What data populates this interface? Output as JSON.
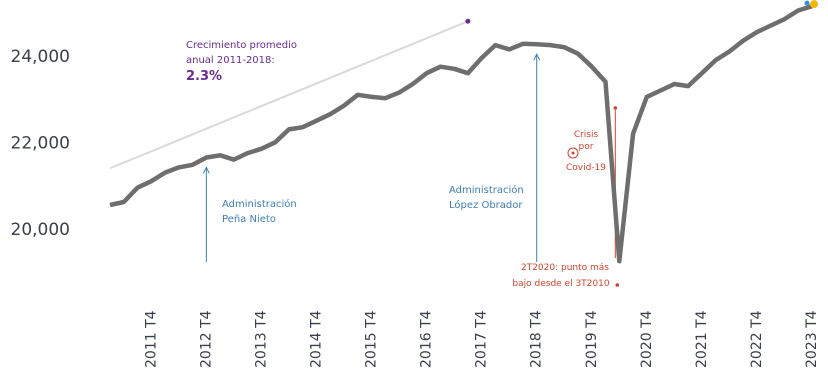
{
  "colors": {
    "series": "#6e6e6e",
    "trend": "#d9d9d9",
    "purple": "#6a2c91",
    "blue": "#3d7fb5",
    "red": "#d0432d",
    "end_dot": "#f2b705",
    "end_dot2": "#3a8fd9"
  },
  "chart_data": {
    "type": "line",
    "title": "",
    "xlabel": "",
    "ylabel": "",
    "ylim": [
      19000,
      25200
    ],
    "yticks": [
      {
        "value": 20000,
        "label": "20,000"
      },
      {
        "value": 22000,
        "label": "22,000"
      },
      {
        "value": 24000,
        "label": "24,000"
      }
    ],
    "x_tick_labels": [
      "2011 T4",
      "2012 T4",
      "2013 T4",
      "2014 T4",
      "2015 T4",
      "2016 T4",
      "2017 T4",
      "2018 T4",
      "2019 T4",
      "2020 T4",
      "2021 T4",
      "2022 T4",
      "2023 T4"
    ],
    "x_tick_index": [
      3,
      7,
      11,
      15,
      19,
      23,
      27,
      31,
      35,
      39,
      43,
      47,
      51
    ],
    "x_categories": [
      "2011 T1",
      "2011 T2",
      "2011 T3",
      "2011 T4",
      "2012 T1",
      "2012 T2",
      "2012 T3",
      "2012 T4",
      "2013 T1",
      "2013 T2",
      "2013 T3",
      "2013 T4",
      "2014 T1",
      "2014 T2",
      "2014 T3",
      "2014 T4",
      "2015 T1",
      "2015 T2",
      "2015 T3",
      "2015 T4",
      "2016 T1",
      "2016 T2",
      "2016 T3",
      "2016 T4",
      "2017 T1",
      "2017 T2",
      "2017 T3",
      "2017 T4",
      "2018 T1",
      "2018 T2",
      "2018 T3",
      "2018 T4",
      "2019 T1",
      "2019 T2",
      "2019 T3",
      "2019 T4",
      "2020 T1",
      "2020 T2",
      "2020 T3",
      "2020 T4",
      "2021 T1",
      "2021 T2",
      "2021 T3",
      "2021 T4",
      "2022 T1",
      "2022 T2",
      "2022 T3",
      "2022 T4",
      "2023 T1",
      "2023 T2",
      "2023 T3",
      "2023 T4"
    ],
    "series": [
      {
        "values": [
          20550,
          20620,
          20950,
          21100,
          21300,
          21420,
          21480,
          21650,
          21700,
          21600,
          21750,
          21850,
          22000,
          22300,
          22350,
          22500,
          22650,
          22850,
          23100,
          23050,
          23020,
          23150,
          23350,
          23600,
          23750,
          23700,
          23600,
          23950,
          24250,
          24150,
          24280,
          24270,
          24250,
          24200,
          24050,
          23750,
          23400,
          19250,
          22200,
          23050,
          23200,
          23350,
          23300,
          23600,
          23900,
          24100,
          24350,
          24550,
          24700,
          24850,
          25050,
          25150
        ]
      }
    ],
    "trend_line": {
      "from_index": 0,
      "from_value": 21400,
      "to_index": 26,
      "to_value": 24800
    },
    "annotations": {
      "growth_line1": "Crecimiento promedio",
      "growth_line2": "anual 2011-2018:",
      "growth_value": "2.3%",
      "pena_line1": "Administración",
      "pena_line2": "Peña Nieto",
      "pena_index": 7,
      "lopez_line1": "Administración",
      "lopez_line2": "López Obrador",
      "lopez_index": 31,
      "crisis_line1": "Crisis",
      "crisis_line2": "por",
      "crisis_line3": "Covid-19",
      "low_line1": "2T2020: punto más",
      "low_line2": "bajo desde el 3T2010",
      "low_index": 37
    },
    "grid": false,
    "legend": "none"
  }
}
